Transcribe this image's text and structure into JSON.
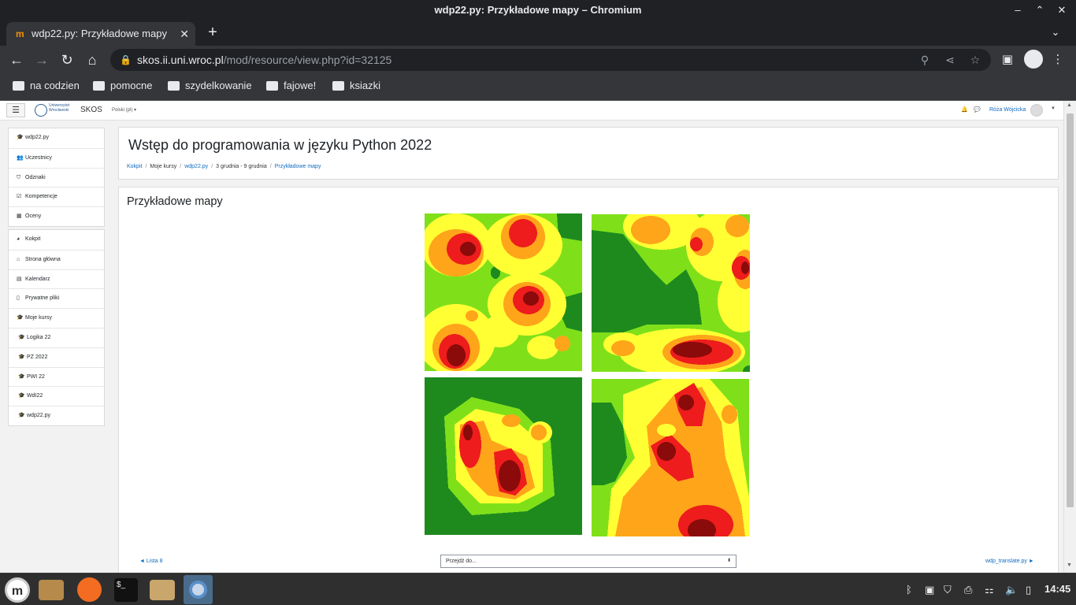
{
  "window": {
    "title": "wdp22.py: Przykładowe mapy – Chromium"
  },
  "tab": {
    "title": "wdp22.py: Przykładowe mapy",
    "favicon": "m"
  },
  "address": {
    "host": "skos.ii.uni.wroc.pl",
    "path": "/mod/resource/view.php?id=32125"
  },
  "bookmarks": [
    "na codzien",
    "pomocne",
    "szydelkowanie",
    "fajowe!",
    "ksiazki"
  ],
  "site": {
    "logo_line1": "Uniwersytet",
    "logo_line2": "Wrocławski",
    "name": "SKOS",
    "language": "Polski (pl)",
    "user": "Róża Wójcicka"
  },
  "sidebar": {
    "course": [
      {
        "label": "wdp22.py",
        "icon": "graduation-cap-icon"
      },
      {
        "label": "Uczestnicy",
        "icon": "users-icon"
      },
      {
        "label": "Odznaki",
        "icon": "shield-icon"
      },
      {
        "label": "Kompetencje",
        "icon": "check-square-icon"
      },
      {
        "label": "Oceny",
        "icon": "table-icon"
      }
    ],
    "nav": [
      {
        "label": "Kokpit",
        "icon": "dashboard-icon"
      },
      {
        "label": "Strona główna",
        "icon": "home-icon"
      },
      {
        "label": "Kalendarz",
        "icon": "calendar-icon"
      },
      {
        "label": "Prywatne pliki",
        "icon": "file-icon"
      },
      {
        "label": "Moje kursy",
        "icon": "graduation-cap-icon"
      },
      {
        "label": "Logika 22",
        "icon": "graduation-cap-icon"
      },
      {
        "label": "PZ 2022",
        "icon": "graduation-cap-icon"
      },
      {
        "label": "PWI 22",
        "icon": "graduation-cap-icon"
      },
      {
        "label": "WdI22",
        "icon": "graduation-cap-icon"
      },
      {
        "label": "wdp22.py",
        "icon": "graduation-cap-icon"
      }
    ]
  },
  "header": {
    "course_title": "Wstęp do programowania w języku Python 2022",
    "breadcrumb": [
      "Kokpit",
      "Moje kursy",
      "wdp22.py",
      "3 grudnia - 9 grudnia",
      "Przykładowe mapy"
    ]
  },
  "resource": {
    "title": "Przykładowe mapy",
    "prev_link": "◄ Lista 8",
    "next_link": "wdp_translate.py ►",
    "jump_placeholder": "Przejdź do..."
  },
  "colors": {
    "map_dark_green": "#1e8a1e",
    "map_light_green": "#7fe01a",
    "map_yellow": "#ffff33",
    "map_orange": "#ffa51a",
    "map_red": "#ee1c1c",
    "map_dark_red": "#8b0a0a",
    "link": "#0f6cbf"
  },
  "taskbar": {
    "clock": "14:45"
  }
}
